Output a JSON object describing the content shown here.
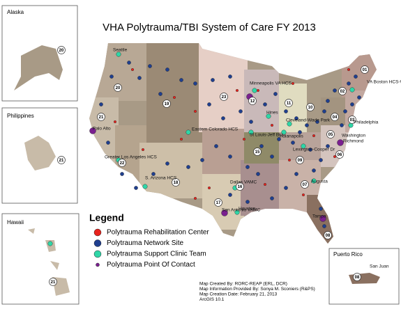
{
  "title": "VHA Polytrauma/TBI System of Care FY 2013",
  "insets": [
    {
      "name": "Alaska",
      "visn": "20"
    },
    {
      "name": "Philippines",
      "visn": "21"
    },
    {
      "name": "Hawaii",
      "visn": "21"
    },
    {
      "name": "Puerto Rico",
      "visn": "08",
      "city": "San Juan"
    }
  ],
  "visns": [
    "01",
    "02",
    "03",
    "04",
    "05",
    "06",
    "07",
    "08",
    "09",
    "10",
    "11",
    "12",
    "15",
    "16",
    "17",
    "18",
    "19",
    "20",
    "21",
    "22",
    "23"
  ],
  "cities": [
    "Seattle",
    "Minneapolis VA HCS",
    "Hines",
    "Cleveland-Wade Park",
    "VA Boston HCS-West Roxbury Div.",
    "Philadelphia",
    "Washington",
    "Richmond",
    "Palo Alto",
    "Eastern Colorado HCS",
    "St Louis-Jeff Bks",
    "Indianapolis",
    "Lexington-Cooper Dr",
    "Greater Los Angeles HCS",
    "S. Arizona HCS",
    "Dallas VAMC",
    "Augusta",
    "Houston",
    "San Antonio VAMC",
    "Tampa"
  ],
  "legend": {
    "title": "Legend",
    "items": [
      {
        "label": "Polytrauma Rehabilitation Center",
        "color": "#e8231d"
      },
      {
        "label": "Polytrauma Network Site",
        "color": "#1f3f8f"
      },
      {
        "label": "Polytrauma Support Clinic Team",
        "color": "#2fd6a7"
      },
      {
        "label": "Polytrauma Point Of Contact",
        "color": "#7a1f8f"
      }
    ]
  },
  "credits": [
    "Map Created By: RORC-REAP (ERL, DCR)",
    "Map Information Provided By: Sonya M. Sconiers (R&PS)",
    "Map Creation Date: February 21, 2013",
    "ArcGIS 10.1"
  ]
}
